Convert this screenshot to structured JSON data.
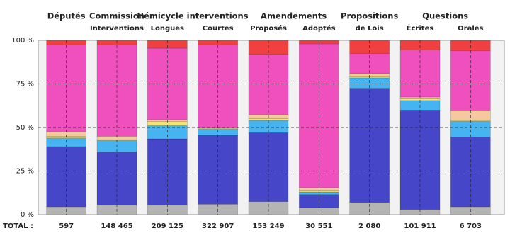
{
  "chart_data": {
    "type": "stacked-bar-100",
    "groups": [
      {
        "label": "Députés",
        "categories": [
          null
        ]
      },
      {
        "label": "Commission",
        "categories": [
          "Interventions"
        ]
      },
      {
        "label": "Hémicycle interventions",
        "categories": [
          "Longues",
          "Courtes"
        ]
      },
      {
        "label": "Amendements",
        "categories": [
          "Proposés",
          "Adoptés"
        ]
      },
      {
        "label": "Propositions",
        "categories": [
          "de Lois"
        ]
      },
      {
        "label": "Questions",
        "categories": [
          "Écrites",
          "Orales"
        ]
      }
    ],
    "series": [
      {
        "color": "#b4b4b4",
        "values": [
          4.5,
          5.5,
          5.5,
          6,
          7.5,
          4,
          7,
          3,
          4.5
        ]
      },
      {
        "color": "#4646c8",
        "values": [
          34.5,
          30.5,
          38,
          39.5,
          39.5,
          7.5,
          65.5,
          57,
          40
        ]
      },
      {
        "color": "#46b4f0",
        "values": [
          5,
          6.5,
          7.5,
          3.5,
          7,
          1.5,
          6,
          5.5,
          9
        ]
      },
      {
        "color": "#f0e678",
        "values": [
          1,
          0.5,
          2.5,
          0.5,
          1,
          1,
          1,
          1,
          0.5
        ]
      },
      {
        "color": "#f5c8a0",
        "values": [
          2.5,
          2,
          1,
          0.5,
          2.5,
          1.5,
          1.5,
          1,
          6
        ]
      },
      {
        "color": "#f050be",
        "values": [
          50,
          52.5,
          41,
          47.5,
          34.5,
          82.5,
          11.5,
          27,
          34
        ]
      },
      {
        "color": "#f04040",
        "values": [
          2.5,
          2.5,
          4.5,
          2.5,
          8,
          2,
          7.5,
          5.5,
          6
        ]
      }
    ],
    "ylim": [
      0,
      100
    ],
    "yticks": [
      {
        "value": 0,
        "label": "0 %"
      },
      {
        "value": 25,
        "label": "25 %"
      },
      {
        "value": 50,
        "label": "50 %"
      },
      {
        "value": 75,
        "label": "75 %"
      },
      {
        "value": 100,
        "label": "100 %"
      }
    ],
    "grid": true,
    "totals_label": "TOTAL :",
    "totals": [
      {
        "value": 597,
        "label": "597"
      },
      {
        "value": 148465,
        "label": "148 465"
      },
      {
        "value": 209125,
        "label": "209 125"
      },
      {
        "value": 322907,
        "label": "322 907"
      },
      {
        "value": 153249,
        "label": "153 249"
      },
      {
        "value": 30551,
        "label": "30 551"
      },
      {
        "value": 2080,
        "label": "2 080"
      },
      {
        "value": 101911,
        "label": "101 911"
      },
      {
        "value": 6703,
        "label": "6 703"
      }
    ]
  }
}
